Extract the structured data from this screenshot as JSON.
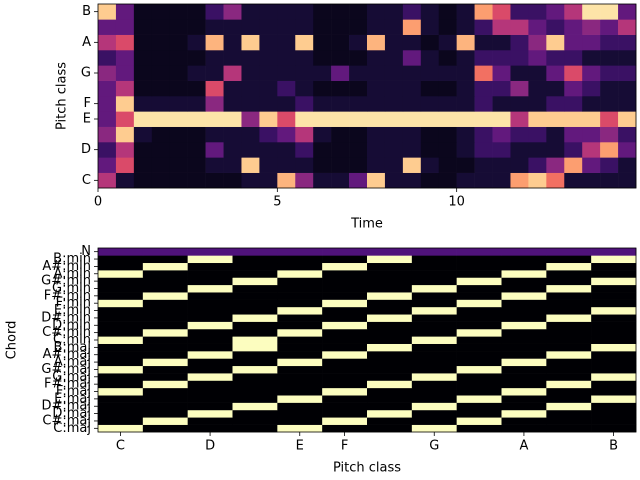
{
  "chart_data": [
    {
      "type": "heatmap",
      "colormap": "magma",
      "xlabel": "Time",
      "ylabel": "Pitch class",
      "x": [
        0.25,
        0.75,
        1.25,
        1.75,
        2.25,
        2.75,
        3.25,
        3.75,
        4.25,
        4.75,
        5.25,
        5.75,
        6.25,
        6.75,
        7.25,
        7.75,
        8.25,
        8.75,
        9.25,
        9.75,
        10.25,
        10.75,
        11.25,
        11.75,
        12.25,
        12.75,
        13.25,
        13.75,
        14.25,
        14.75
      ],
      "xlim": [
        0,
        15
      ],
      "xticks": [
        0,
        5,
        10
      ],
      "ylim": [
        -0.5,
        11.5
      ],
      "yticks": [
        {
          "value": 0,
          "label": "C"
        },
        {
          "value": 2,
          "label": "D"
        },
        {
          "value": 4,
          "label": "E"
        },
        {
          "value": 5,
          "label": "F"
        },
        {
          "value": 7,
          "label": "G"
        },
        {
          "value": 9,
          "label": "A"
        },
        {
          "value": 11,
          "label": "B"
        }
      ],
      "zlim": [
        0,
        1
      ],
      "z": [
        [
          0.5,
          0.1,
          0.05,
          0.05,
          0.05,
          0.05,
          0.05,
          0.05,
          0.1,
          0.1,
          0.85,
          0.4,
          0.1,
          0.1,
          0.3,
          0.9,
          0.1,
          0.1,
          0.05,
          0.05,
          0.1,
          0.1,
          0.1,
          0.8,
          0.9,
          0.7,
          0.1,
          0.1,
          0.1,
          0.1
        ],
        [
          0.3,
          0.6,
          0.05,
          0.05,
          0.05,
          0.05,
          0.1,
          0.1,
          0.9,
          0.1,
          0.1,
          0.1,
          0.05,
          0.05,
          0.05,
          0.1,
          0.1,
          0.9,
          0.1,
          0.05,
          0.05,
          0.1,
          0.1,
          0.1,
          0.2,
          0.4,
          0.8,
          0.3,
          0.2,
          0.1
        ],
        [
          0.2,
          0.5,
          0.05,
          0.05,
          0.05,
          0.05,
          0.3,
          0.1,
          0.1,
          0.1,
          0.1,
          0.2,
          0.05,
          0.05,
          0.05,
          0.1,
          0.1,
          0.1,
          0.05,
          0.05,
          0.1,
          0.2,
          0.2,
          0.1,
          0.1,
          0.1,
          0.2,
          0.5,
          0.8,
          0.3
        ],
        [
          0.4,
          0.9,
          0.1,
          0.05,
          0.05,
          0.05,
          0.1,
          0.1,
          0.1,
          0.2,
          0.3,
          0.5,
          0.1,
          0.05,
          0.05,
          0.1,
          0.1,
          0.1,
          0.05,
          0.05,
          0.1,
          0.2,
          0.3,
          0.2,
          0.2,
          0.1,
          0.3,
          0.3,
          0.4,
          0.2
        ],
        [
          0.3,
          0.6,
          0.95,
          0.95,
          0.95,
          0.95,
          0.95,
          0.95,
          0.4,
          0.9,
          0.6,
          0.95,
          0.95,
          0.95,
          0.95,
          0.95,
          0.95,
          0.95,
          0.95,
          0.95,
          0.95,
          0.95,
          0.95,
          0.5,
          0.9,
          0.9,
          0.9,
          0.9,
          0.6,
          0.9
        ],
        [
          0.3,
          0.9,
          0.1,
          0.1,
          0.1,
          0.1,
          0.4,
          0.1,
          0.1,
          0.1,
          0.1,
          0.2,
          0.1,
          0.1,
          0.1,
          0.1,
          0.1,
          0.1,
          0.1,
          0.1,
          0.1,
          0.2,
          0.1,
          0.1,
          0.1,
          0.2,
          0.2,
          0.1,
          0.1,
          0.1
        ],
        [
          0.3,
          0.5,
          0.05,
          0.05,
          0.05,
          0.05,
          0.6,
          0.1,
          0.1,
          0.1,
          0.2,
          0.1,
          0.05,
          0.05,
          0.05,
          0.1,
          0.1,
          0.1,
          0.05,
          0.05,
          0.1,
          0.2,
          0.2,
          0.4,
          0.1,
          0.1,
          0.3,
          0.2,
          0.1,
          0.1
        ],
        [
          0.4,
          0.3,
          0.05,
          0.05,
          0.05,
          0.1,
          0.1,
          0.5,
          0.1,
          0.1,
          0.1,
          0.1,
          0.1,
          0.3,
          0.1,
          0.1,
          0.1,
          0.1,
          0.1,
          0.1,
          0.1,
          0.7,
          0.3,
          0.1,
          0.1,
          0.3,
          0.6,
          0.3,
          0.2,
          0.2
        ],
        [
          0.2,
          0.3,
          0.05,
          0.05,
          0.05,
          0.05,
          0.1,
          0.1,
          0.1,
          0.1,
          0.1,
          0.1,
          0.05,
          0.05,
          0.05,
          0.1,
          0.1,
          0.3,
          0.1,
          0.05,
          0.1,
          0.2,
          0.2,
          0.2,
          0.3,
          0.2,
          0.2,
          0.1,
          0.1,
          0.1
        ],
        [
          0.5,
          0.6,
          0.05,
          0.05,
          0.05,
          0.1,
          0.85,
          0.1,
          0.9,
          0.1,
          0.1,
          0.9,
          0.05,
          0.05,
          0.1,
          0.85,
          0.1,
          0.1,
          0.05,
          0.1,
          0.85,
          0.1,
          0.1,
          0.2,
          0.4,
          0.9,
          0.3,
          0.3,
          0.2,
          0.2
        ],
        [
          0.3,
          0.3,
          0.05,
          0.05,
          0.05,
          0.05,
          0.1,
          0.1,
          0.1,
          0.1,
          0.1,
          0.1,
          0.05,
          0.05,
          0.05,
          0.1,
          0.1,
          0.8,
          0.1,
          0.05,
          0.1,
          0.2,
          0.5,
          0.5,
          0.3,
          0.2,
          0.3,
          0.4,
          0.3,
          0.5
        ],
        [
          0.9,
          0.3,
          0.05,
          0.05,
          0.05,
          0.05,
          0.2,
          0.4,
          0.1,
          0.1,
          0.1,
          0.1,
          0.05,
          0.05,
          0.05,
          0.1,
          0.1,
          0.2,
          0.1,
          0.05,
          0.1,
          0.8,
          0.6,
          0.2,
          0.2,
          0.3,
          0.5,
          0.95,
          0.95,
          0.3
        ]
      ]
    },
    {
      "type": "heatmap",
      "colormap": "magma",
      "xlabel": "Pitch class",
      "ylabel": "Chord",
      "xlim": [
        -0.5,
        11.5
      ],
      "xticks": [
        {
          "value": 0,
          "label": "C"
        },
        {
          "value": 2,
          "label": "D"
        },
        {
          "value": 4,
          "label": "E"
        },
        {
          "value": 5,
          "label": "F"
        },
        {
          "value": 7,
          "label": "G"
        },
        {
          "value": 9,
          "label": "A"
        },
        {
          "value": 11,
          "label": "B"
        }
      ],
      "ylim": [
        -0.5,
        24.5
      ],
      "yticks": [
        {
          "value": 0,
          "label": "C:maj"
        },
        {
          "value": 1,
          "label": "C#:maj"
        },
        {
          "value": 2,
          "label": "D:maj"
        },
        {
          "value": 3,
          "label": "D#:maj"
        },
        {
          "value": 4,
          "label": "E:maj"
        },
        {
          "value": 5,
          "label": "F:maj"
        },
        {
          "value": 6,
          "label": "F#:maj"
        },
        {
          "value": 7,
          "label": "G:maj"
        },
        {
          "value": 8,
          "label": "G#:maj"
        },
        {
          "value": 9,
          "label": "A:maj"
        },
        {
          "value": 10,
          "label": "A#:maj"
        },
        {
          "value": 11,
          "label": "B:maj"
        },
        {
          "value": 12,
          "label": "C:min"
        },
        {
          "value": 13,
          "label": "C#:min"
        },
        {
          "value": 14,
          "label": "D:min"
        },
        {
          "value": 15,
          "label": "D#:min"
        },
        {
          "value": 16,
          "label": "E:min"
        },
        {
          "value": 17,
          "label": "F:min"
        },
        {
          "value": 18,
          "label": "F#:min"
        },
        {
          "value": 19,
          "label": "G:min"
        },
        {
          "value": 20,
          "label": "G#:min"
        },
        {
          "value": 21,
          "label": "A:min"
        },
        {
          "value": 22,
          "label": "A#:min"
        },
        {
          "value": 23,
          "label": "B:min"
        },
        {
          "value": 24,
          "label": "N"
        }
      ],
      "zlim": [
        0,
        0.333
      ],
      "z": [
        [
          0.333,
          0,
          0,
          0,
          0.333,
          0,
          0,
          0.333,
          0,
          0,
          0,
          0
        ],
        [
          0,
          0.333,
          0,
          0,
          0,
          0.333,
          0,
          0,
          0.333,
          0,
          0,
          0
        ],
        [
          0,
          0,
          0.333,
          0,
          0,
          0,
          0.333,
          0,
          0,
          0.333,
          0,
          0
        ],
        [
          0,
          0,
          0,
          0.333,
          0,
          0,
          0,
          0.333,
          0,
          0,
          0.333,
          0
        ],
        [
          0,
          0,
          0,
          0,
          0.333,
          0,
          0,
          0,
          0.333,
          0,
          0,
          0.333
        ],
        [
          0.333,
          0,
          0,
          0,
          0,
          0.333,
          0,
          0,
          0,
          0.333,
          0,
          0
        ],
        [
          0,
          0.333,
          0,
          0,
          0,
          0,
          0.333,
          0,
          0,
          0,
          0.333,
          0
        ],
        [
          0,
          0,
          0.333,
          0,
          0,
          0,
          0,
          0.333,
          0,
          0,
          0,
          0.333
        ],
        [
          0.333,
          0,
          0,
          0.333,
          0,
          0,
          0,
          0,
          0.333,
          0,
          0,
          0
        ],
        [
          0,
          0.333,
          0,
          0,
          0.333,
          0,
          0,
          0,
          0,
          0.333,
          0,
          0
        ],
        [
          0,
          0,
          0.333,
          0,
          0,
          0.333,
          0,
          0,
          0,
          0,
          0.333,
          0
        ],
        [
          0,
          0,
          0,
          0.333,
          0,
          0,
          0.333,
          0,
          0,
          0,
          0,
          0.333
        ],
        [
          0.333,
          0,
          0,
          0.333,
          0,
          0,
          0,
          0.333,
          0,
          0,
          0,
          0
        ],
        [
          0,
          0.333,
          0,
          0,
          0.333,
          0,
          0,
          0,
          0.333,
          0,
          0,
          0
        ],
        [
          0,
          0,
          0.333,
          0,
          0,
          0.333,
          0,
          0,
          0,
          0.333,
          0,
          0
        ],
        [
          0,
          0,
          0,
          0.333,
          0,
          0,
          0.333,
          0,
          0,
          0,
          0.333,
          0
        ],
        [
          0,
          0,
          0,
          0,
          0.333,
          0,
          0,
          0.333,
          0,
          0,
          0,
          0.333
        ],
        [
          0.333,
          0,
          0,
          0,
          0,
          0.333,
          0,
          0,
          0.333,
          0,
          0,
          0
        ],
        [
          0,
          0.333,
          0,
          0,
          0,
          0,
          0.333,
          0,
          0,
          0.333,
          0,
          0
        ],
        [
          0,
          0,
          0.333,
          0,
          0,
          0,
          0,
          0.333,
          0,
          0,
          0.333,
          0
        ],
        [
          0,
          0,
          0,
          0.333,
          0,
          0,
          0,
          0,
          0.333,
          0,
          0,
          0.333
        ],
        [
          0.333,
          0,
          0,
          0,
          0.333,
          0,
          0,
          0,
          0,
          0.333,
          0,
          0
        ],
        [
          0,
          0.333,
          0,
          0,
          0,
          0.333,
          0,
          0,
          0,
          0,
          0.333,
          0
        ],
        [
          0,
          0,
          0.333,
          0,
          0,
          0,
          0.333,
          0,
          0,
          0,
          0,
          0.333
        ],
        [
          0.083,
          0.083,
          0.083,
          0.083,
          0.083,
          0.083,
          0.083,
          0.083,
          0.083,
          0.083,
          0.083,
          0.083
        ]
      ]
    }
  ]
}
